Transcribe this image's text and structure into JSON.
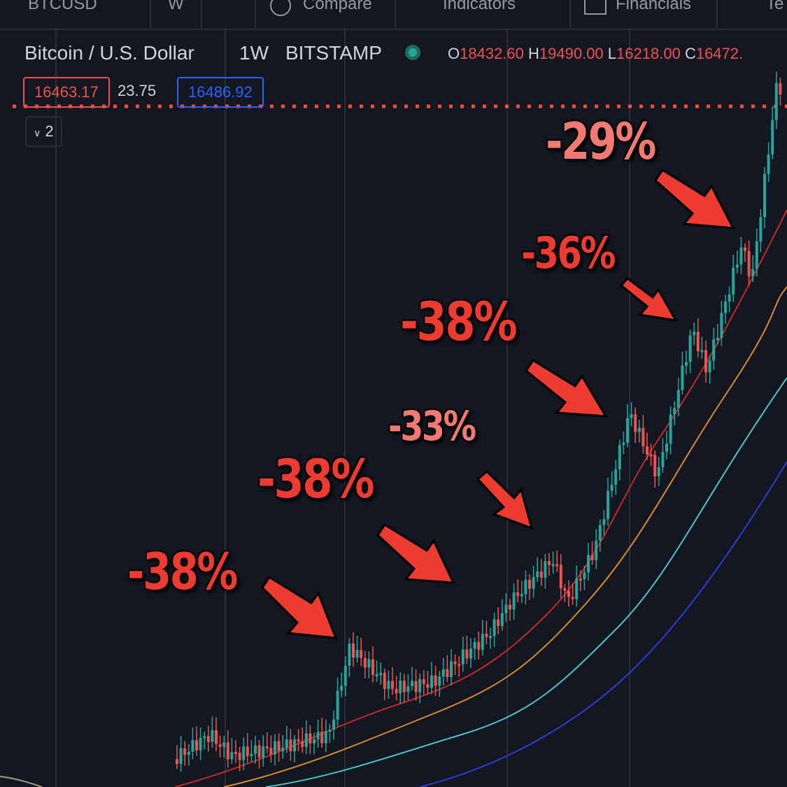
{
  "toolbar": {
    "symbol": "BTCUSD",
    "interval": "W",
    "compare": "Compare",
    "indicators": "Indicators",
    "financials": "Financials",
    "more": "Te"
  },
  "legend": {
    "title": "Bitcoin / U.S. Dollar",
    "interval": "1W",
    "exchange": "BITSTAMP",
    "open_label": "O",
    "open": "18432.60",
    "high_label": "H",
    "high": "19490.00",
    "low_label": "L",
    "low": "16218.00",
    "close_label": "C",
    "close": "16472."
  },
  "quote": {
    "bid": "16463.17",
    "spread": "23.75",
    "ask": "16486.92"
  },
  "indicators_toggle": "2",
  "annotations": [
    "-38%",
    "-38%",
    "-33%",
    "-38%",
    "-36%",
    "-29%"
  ]
}
